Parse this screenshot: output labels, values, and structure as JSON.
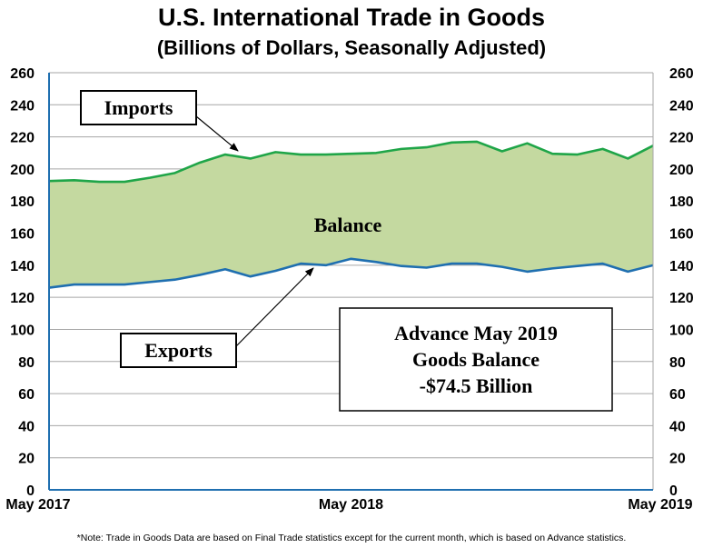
{
  "chart_data": {
    "type": "area",
    "title": "U.S. International Trade in Goods",
    "subtitle": "(Billions of Dollars, Seasonally Adjusted)",
    "x": [
      "2017-05",
      "2017-06",
      "2017-07",
      "2017-08",
      "2017-09",
      "2017-10",
      "2017-11",
      "2017-12",
      "2018-01",
      "2018-02",
      "2018-03",
      "2018-04",
      "2018-05",
      "2018-06",
      "2018-07",
      "2018-08",
      "2018-09",
      "2018-10",
      "2018-11",
      "2018-12",
      "2019-01",
      "2019-02",
      "2019-03",
      "2019-04",
      "2019-05"
    ],
    "x_tick_labels": [
      "May 2017",
      "May 2018",
      "May 2019"
    ],
    "series": [
      {
        "name": "Imports",
        "color": "#1fa548",
        "values": [
          192.5,
          193.0,
          192.0,
          192.0,
          194.5,
          197.5,
          204.0,
          209.0,
          206.5,
          210.5,
          209.0,
          209.0,
          209.5,
          210.0,
          212.5,
          213.5,
          216.5,
          217.0,
          211.0,
          216.0,
          209.5,
          209.0,
          212.5,
          206.5,
          214.5
        ]
      },
      {
        "name": "Exports",
        "color": "#1f6fb0",
        "values": [
          126.0,
          128.0,
          128.0,
          128.0,
          129.5,
          131.0,
          134.0,
          137.5,
          133.0,
          136.5,
          141.0,
          140.0,
          144.0,
          142.0,
          139.5,
          138.5,
          141.0,
          141.0,
          139.0,
          136.0,
          138.0,
          139.5,
          141.0,
          136.0,
          140.0
        ]
      }
    ],
    "fill_color": "#c4d9a0",
    "ylim": [
      0,
      260
    ],
    "y_ticks": [
      0,
      20,
      40,
      60,
      80,
      100,
      120,
      140,
      160,
      180,
      200,
      220,
      240,
      260
    ],
    "grid": true,
    "annotations": {
      "imports_label": "Imports",
      "exports_label": "Exports",
      "balance_label": "Balance",
      "box_line1": "Advance May 2019",
      "box_line2": "Goods Balance",
      "box_line3": "-$74.5 Billion"
    }
  },
  "note": "*Note: Trade in Goods Data are based on Final Trade statistics except for the current month, which is based on Advance statistics."
}
